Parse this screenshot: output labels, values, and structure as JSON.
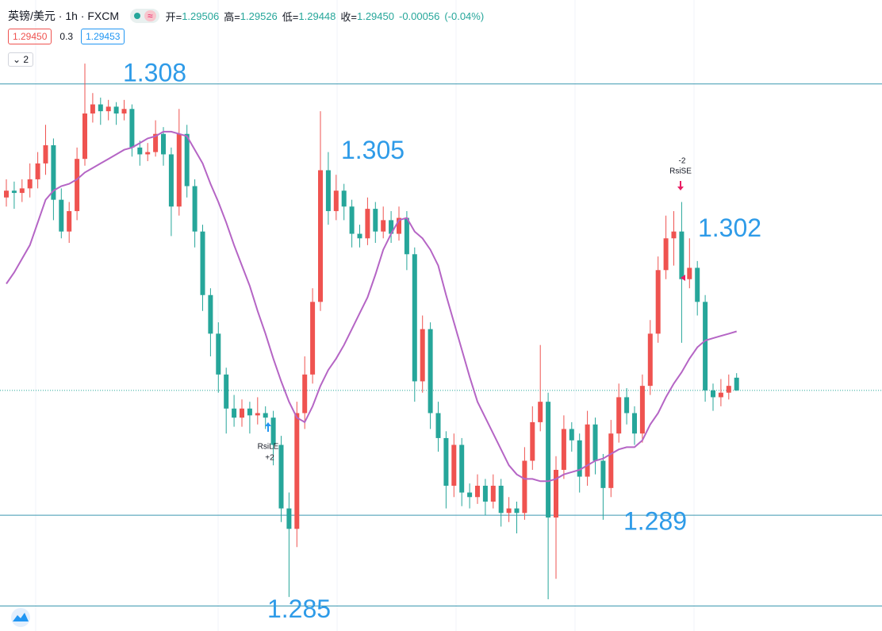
{
  "chart_data": {
    "type": "candlestick",
    "title": "英镑/美元 · 1h · FXCM",
    "ohlc_labels": [
      "开=",
      "高=",
      "低=",
      "收="
    ],
    "last_value_labels": [
      "1.29506",
      "1.29526",
      "1.29448",
      "1.29450"
    ],
    "change": -0.00056,
    "change_pct": {
      "value": -0.04,
      "label": "(-0.04%)"
    },
    "bid": {
      "value": 1.2945,
      "label": "1.29450"
    },
    "spread": 0.3,
    "ask": {
      "value": 1.29453,
      "label": "1.29453"
    },
    "indicator_count": 2,
    "up_color": "#ef5350",
    "down_color": "#26a69a",
    "ylim": [
      1.2839,
      1.3117
    ],
    "ohlc": [
      [
        1.303,
        1.3038,
        1.3026,
        1.3033
      ],
      [
        1.3033,
        1.3037,
        1.3025,
        1.3032
      ],
      [
        1.3032,
        1.3038,
        1.3028,
        1.3034
      ],
      [
        1.3034,
        1.3045,
        1.303,
        1.3038
      ],
      [
        1.3038,
        1.305,
        1.3034,
        1.3045
      ],
      [
        1.3045,
        1.3062,
        1.304,
        1.3053
      ],
      [
        1.3053,
        1.3056,
        1.302,
        1.3029
      ],
      [
        1.3029,
        1.3034,
        1.3012,
        1.3015
      ],
      [
        1.3015,
        1.3028,
        1.301,
        1.3024
      ],
      [
        1.3024,
        1.3052,
        1.302,
        1.3047
      ],
      [
        1.3047,
        1.3089,
        1.3044,
        1.3067
      ],
      [
        1.3067,
        1.3076,
        1.3063,
        1.3071
      ],
      [
        1.3071,
        1.3074,
        1.3062,
        1.3068
      ],
      [
        1.3068,
        1.3073,
        1.3064,
        1.307
      ],
      [
        1.307,
        1.3072,
        1.3062,
        1.3067
      ],
      [
        1.3067,
        1.3073,
        1.3064,
        1.3069
      ],
      [
        1.3069,
        1.3071,
        1.3048,
        1.3052
      ],
      [
        1.3052,
        1.3055,
        1.3044,
        1.3049
      ],
      [
        1.3049,
        1.3054,
        1.3046,
        1.305
      ],
      [
        1.305,
        1.3064,
        1.3048,
        1.3058
      ],
      [
        1.3058,
        1.3061,
        1.3044,
        1.3049
      ],
      [
        1.3049,
        1.3052,
        1.3013,
        1.3026
      ],
      [
        1.3026,
        1.3069,
        1.3022,
        1.3058
      ],
      [
        1.3058,
        1.3062,
        1.303,
        1.3035
      ],
      [
        1.3035,
        1.3038,
        1.3008,
        1.3015
      ],
      [
        1.3015,
        1.3018,
        1.298,
        1.2987
      ],
      [
        1.2987,
        1.299,
        1.296,
        1.297
      ],
      [
        1.297,
        1.2975,
        1.2944,
        1.2952
      ],
      [
        1.2952,
        1.2955,
        1.2926,
        1.2937
      ],
      [
        1.2937,
        1.2943,
        1.2929,
        1.2933
      ],
      [
        1.2933,
        1.2941,
        1.2929,
        1.2937
      ],
      [
        1.2937,
        1.294,
        1.2926,
        1.2934
      ],
      [
        1.2934,
        1.2942,
        1.293,
        1.2935
      ],
      [
        1.2935,
        1.2938,
        1.2928,
        1.2933
      ],
      [
        1.2933,
        1.2936,
        1.2912,
        1.2921
      ],
      [
        1.2921,
        1.2925,
        1.2887,
        1.2893
      ],
      [
        1.2893,
        1.29,
        1.2854,
        1.2884
      ],
      [
        1.2884,
        1.294,
        1.2876,
        1.2935
      ],
      [
        1.2935,
        1.296,
        1.2928,
        1.2952
      ],
      [
        1.2952,
        1.299,
        1.2948,
        1.2984
      ],
      [
        1.2984,
        1.3068,
        1.298,
        1.3042
      ],
      [
        1.3042,
        1.305,
        1.3018,
        1.3024
      ],
      [
        1.3024,
        1.304,
        1.302,
        1.3033
      ],
      [
        1.3033,
        1.3036,
        1.302,
        1.3026
      ],
      [
        1.3026,
        1.3029,
        1.3008,
        1.3014
      ],
      [
        1.3014,
        1.3018,
        1.3008,
        1.3012
      ],
      [
        1.3012,
        1.303,
        1.3009,
        1.3025
      ],
      [
        1.3025,
        1.3028,
        1.301,
        1.3015
      ],
      [
        1.3015,
        1.3026,
        1.3012,
        1.302
      ],
      [
        1.302,
        1.3024,
        1.301,
        1.3014
      ],
      [
        1.3014,
        1.3026,
        1.3011,
        1.3021
      ],
      [
        1.3021,
        1.3024,
        1.2998,
        1.3005
      ],
      [
        1.3005,
        1.3008,
        1.294,
        1.2949
      ],
      [
        1.2949,
        1.2978,
        1.2944,
        1.2972
      ],
      [
        1.2972,
        1.2975,
        1.2928,
        1.2935
      ],
      [
        1.2935,
        1.294,
        1.2918,
        1.2924
      ],
      [
        1.2924,
        1.2927,
        1.2893,
        1.2903
      ],
      [
        1.2903,
        1.2926,
        1.2898,
        1.2921
      ],
      [
        1.2921,
        1.2924,
        1.2894,
        1.29
      ],
      [
        1.29,
        1.2904,
        1.2893,
        1.2898
      ],
      [
        1.2898,
        1.2908,
        1.2895,
        1.2903
      ],
      [
        1.2903,
        1.2906,
        1.289,
        1.2896
      ],
      [
        1.2896,
        1.2908,
        1.2893,
        1.2903
      ],
      [
        1.2903,
        1.2906,
        1.2885,
        1.2891
      ],
      [
        1.2891,
        1.2898,
        1.2887,
        1.2893
      ],
      [
        1.2893,
        1.2896,
        1.2882,
        1.2891
      ],
      [
        1.2891,
        1.292,
        1.2888,
        1.2914
      ],
      [
        1.2914,
        1.2938,
        1.291,
        1.2931
      ],
      [
        1.2931,
        1.2965,
        1.2927,
        1.294
      ],
      [
        1.294,
        1.2944,
        1.2853,
        1.2889
      ],
      [
        1.2889,
        1.2916,
        1.2862,
        1.291
      ],
      [
        1.291,
        1.2934,
        1.2906,
        1.2928
      ],
      [
        1.2928,
        1.2931,
        1.2918,
        1.2923
      ],
      [
        1.2923,
        1.2926,
        1.29,
        1.2907
      ],
      [
        1.2907,
        1.2936,
        1.2903,
        1.293
      ],
      [
        1.293,
        1.2933,
        1.2908,
        1.2914
      ],
      [
        1.2914,
        1.2917,
        1.2888,
        1.2902
      ],
      [
        1.2902,
        1.2932,
        1.2898,
        1.2926
      ],
      [
        1.2926,
        1.2948,
        1.2922,
        1.2942
      ],
      [
        1.2942,
        1.2946,
        1.293,
        1.2935
      ],
      [
        1.2935,
        1.2938,
        1.2921,
        1.2926
      ],
      [
        1.2926,
        1.2952,
        1.2922,
        1.2947
      ],
      [
        1.2947,
        1.2976,
        1.2943,
        1.297
      ],
      [
        1.297,
        1.3004,
        1.2966,
        1.2998
      ],
      [
        1.2998,
        1.3022,
        1.2994,
        1.3012
      ],
      [
        1.3012,
        1.3024,
        1.3,
        1.3015
      ],
      [
        1.3015,
        1.3028,
        1.2966,
        1.2994
      ],
      [
        1.2994,
        1.3012,
        1.299,
        1.2999
      ],
      [
        1.2999,
        1.3002,
        1.2978,
        1.2984
      ],
      [
        1.2984,
        1.2987,
        1.294,
        1.2945
      ],
      [
        1.2945,
        1.2948,
        1.2936,
        1.2942
      ],
      [
        1.2942,
        1.295,
        1.2938,
        1.2944
      ],
      [
        1.2944,
        1.2952,
        1.2941,
        1.2947
      ],
      [
        1.29506,
        1.29526,
        1.29448,
        1.2945
      ]
    ],
    "ma": {
      "color": "#b565c5",
      "values": [
        1.2992,
        1.2997,
        1.3003,
        1.3009,
        1.3019,
        1.3029,
        1.3033,
        1.3035,
        1.3036,
        1.3038,
        1.3041,
        1.3043,
        1.3045,
        1.3047,
        1.3049,
        1.3051,
        1.3052,
        1.3054,
        1.3056,
        1.3057,
        1.3059,
        1.3059,
        1.3058,
        1.3057,
        1.3051,
        1.3045,
        1.3036,
        1.3028,
        1.3019,
        1.3009,
        1.3,
        1.2991,
        1.298,
        1.297,
        1.2959,
        1.2949,
        1.294,
        1.2933,
        1.2931,
        1.2938,
        1.2947,
        1.2954,
        1.2959,
        1.2965,
        1.2972,
        1.2979,
        1.2986,
        1.2996,
        1.3007,
        1.3014,
        1.302,
        1.3021,
        1.3015,
        1.3012,
        1.3007,
        1.3,
        1.2987,
        1.2975,
        1.2963,
        1.2951,
        1.294,
        1.2933,
        1.2926,
        1.2919,
        1.2912,
        1.2908,
        1.2906,
        1.2906,
        1.2905,
        1.2905,
        1.2906,
        1.2908,
        1.2909,
        1.291,
        1.2912,
        1.2914,
        1.2915,
        1.2917,
        1.2919,
        1.292,
        1.292,
        1.2923,
        1.293,
        1.2935,
        1.2942,
        1.2948,
        1.2953,
        1.2959,
        1.2964,
        1.2967,
        1.2968,
        1.2969,
        1.297,
        1.2971
      ]
    },
    "annotations": [
      {
        "value": 1.308,
        "line": true
      },
      {
        "value": 1.305,
        "line": false
      },
      {
        "value": 1.302,
        "line": false
      },
      {
        "value": 1.289,
        "line": true
      },
      {
        "value": 1.285,
        "line": true
      }
    ],
    "annotation_color": "#2e9be8",
    "level_line_color": "#3c98b0",
    "signals": [
      {
        "label": "RsiLE",
        "qty": "+2",
        "color": "#2196f3"
      },
      {
        "label": "RsiSE",
        "qty": "-2",
        "color": "#e91e63"
      }
    ]
  }
}
